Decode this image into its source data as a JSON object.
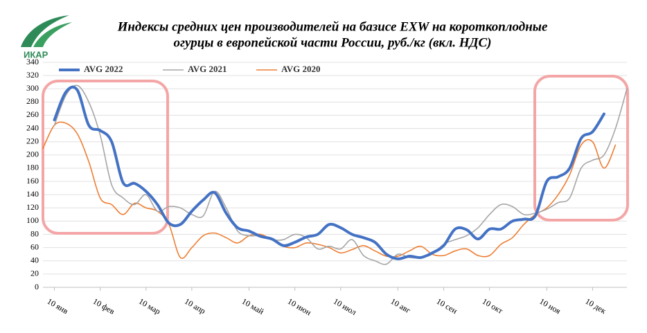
{
  "logo": "ИКАР",
  "chart_data": {
    "type": "line",
    "title_lines": [
      "Индексы средних цен производителей на базисе EXW на короткоплодные",
      "огурцы в европейской части России, руб./кг (вкл. НДС)"
    ],
    "categories": [
      null,
      "10 янв",
      null,
      null,
      null,
      "10 фев",
      null,
      null,
      null,
      "10 мар",
      null,
      null,
      null,
      "10 апр",
      null,
      null,
      null,
      null,
      "10 май",
      null,
      null,
      null,
      "10 июн",
      null,
      null,
      null,
      "10 июл",
      null,
      null,
      null,
      null,
      "10 авг",
      null,
      null,
      null,
      "10 сен",
      null,
      null,
      null,
      "10 окт",
      null,
      null,
      null,
      null,
      "10 ноя",
      null,
      null,
      null,
      "10 дек",
      null,
      null,
      null
    ],
    "series": [
      {
        "name": "AVG 2022",
        "color": "#4472c4",
        "width": 4,
        "values": [
          null,
          253,
          295,
          298,
          245,
          237,
          220,
          158,
          157,
          145,
          125,
          97,
          95,
          115,
          132,
          143,
          112,
          90,
          85,
          77,
          73,
          63,
          68,
          76,
          80,
          95,
          90,
          80,
          75,
          68,
          50,
          43,
          47,
          45,
          52,
          63,
          88,
          87,
          73,
          88,
          88,
          100,
          103,
          108,
          160,
          167,
          180,
          225,
          235,
          262,
          null,
          null
        ]
      },
      {
        "name": "AVG 2021",
        "color": "#a5a5a5",
        "width": 1.6,
        "values": [
          null,
          245,
          290,
          305,
          280,
          230,
          155,
          135,
          125,
          140,
          115,
          122,
          120,
          110,
          108,
          145,
          120,
          85,
          78,
          78,
          72,
          72,
          80,
          75,
          58,
          62,
          58,
          72,
          48,
          40,
          35,
          50,
          45,
          45,
          50,
          65,
          72,
          78,
          90,
          110,
          125,
          122,
          110,
          112,
          118,
          128,
          135,
          180,
          192,
          200,
          240,
          300
        ]
      },
      {
        "name": "AVG 2020",
        "color": "#ed7d31",
        "width": 1.6,
        "values": [
          210,
          245,
          248,
          232,
          190,
          135,
          125,
          110,
          127,
          120,
          115,
          95,
          45,
          60,
          78,
          82,
          75,
          67,
          78,
          80,
          72,
          62,
          60,
          67,
          65,
          60,
          52,
          57,
          63,
          55,
          47,
          47,
          55,
          62,
          50,
          48,
          55,
          58,
          48,
          48,
          65,
          75,
          95,
          110,
          120,
          140,
          170,
          215,
          220,
          180,
          215,
          null
        ]
      }
    ],
    "ylim": [
      0,
      340
    ],
    "yticks": [
      0,
      20,
      40,
      60,
      80,
      100,
      120,
      140,
      160,
      180,
      200,
      220,
      240,
      260,
      280,
      300,
      320,
      340
    ],
    "grid": true,
    "legend": "top-left"
  }
}
